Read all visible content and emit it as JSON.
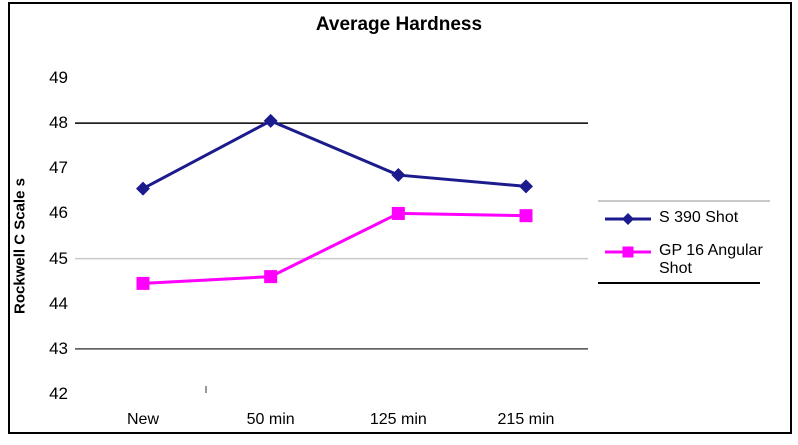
{
  "chart_data": {
    "type": "line",
    "title": "Average Hardness",
    "xlabel": "",
    "ylabel": "Rockwell C Scale s",
    "categories": [
      "New",
      "50 min",
      "125 min",
      "215 min"
    ],
    "series": [
      {
        "name": "S 390 Shot",
        "color": "#1b1b8e",
        "marker": "diamond",
        "values": [
          46.55,
          48.05,
          46.85,
          46.6
        ]
      },
      {
        "name": "GP 16 Angular Shot",
        "color": "#ff00ff",
        "marker": "square",
        "values": [
          44.45,
          44.6,
          46.0,
          45.95
        ]
      }
    ],
    "y_axis": {
      "min": 42,
      "max": 49,
      "ticks": [
        49,
        48,
        47,
        46,
        45,
        44,
        43,
        42
      ]
    },
    "gridlines": [
      {
        "value": 48,
        "color": "#000000"
      },
      {
        "value": 45,
        "color": "#c9c9c9"
      },
      {
        "value": 43,
        "color": "#4d4d4d"
      }
    ],
    "legend": {
      "position": "right",
      "items": [
        "S 390 Shot",
        "GP 16 Angular Shot"
      ]
    }
  }
}
